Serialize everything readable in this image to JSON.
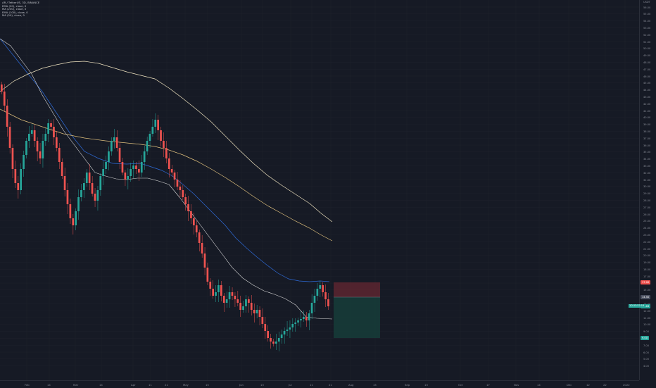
{
  "legend": {
    "title": "AR / TetherUS, 3D, BINANCE",
    "indicators": [
      "EMA (20), close, 0",
      "MA (200), close, 0",
      "EMA (100), close, 0",
      "MA (50), close, 0"
    ]
  },
  "price_axis": {
    "currency": "USDT",
    "labels": [
      "56.00",
      "55.00",
      "54.00",
      "53.00",
      "52.00",
      "51.00",
      "50.00",
      "49.00",
      "48.00",
      "47.00",
      "46.00",
      "45.00",
      "44.00",
      "43.00",
      "42.00",
      "41.00",
      "40.00",
      "39.00",
      "38.00",
      "37.00",
      "36.00",
      "35.00",
      "34.00",
      "33.00",
      "32.00",
      "31.00",
      "30.00",
      "29.00",
      "28.00",
      "27.00",
      "26.00",
      "25.00",
      "24.00",
      "23.00",
      "22.00",
      "21.00",
      "20.00",
      "19.00",
      "18.00",
      "17.00",
      "16.00",
      "15.00",
      "14.00",
      "13.00",
      "12.00",
      "11.00",
      "10.00",
      "9.00",
      "8.00",
      "7.00",
      "6.00",
      "5.00",
      "4.00"
    ]
  },
  "price_tags": {
    "stop": "17.00",
    "entry": "14.50",
    "current": "13.63",
    "current_sub": "1D 03:52:18",
    "target": "9.00"
  },
  "time_axis": {
    "labels": [
      "Feb",
      "14",
      "Mar",
      "14",
      "Apr",
      "11",
      "21",
      "May",
      "15",
      "Jun",
      "13",
      "Jul",
      "11",
      "21",
      "Aug",
      "15",
      "Sep",
      "13",
      "Oct",
      "17",
      "Nov",
      "14",
      "Dec",
      "12",
      "22",
      "2022"
    ]
  },
  "colors": {
    "background": "#161a25",
    "up": "#26a69a",
    "down": "#ef5350",
    "ema20": "#2962ff",
    "ma200": "#f0e4c0",
    "ema100": "#e8c07a",
    "ma50": "#ffffff",
    "stop_zone": "#5c2630",
    "target_zone": "#163b38"
  }
}
